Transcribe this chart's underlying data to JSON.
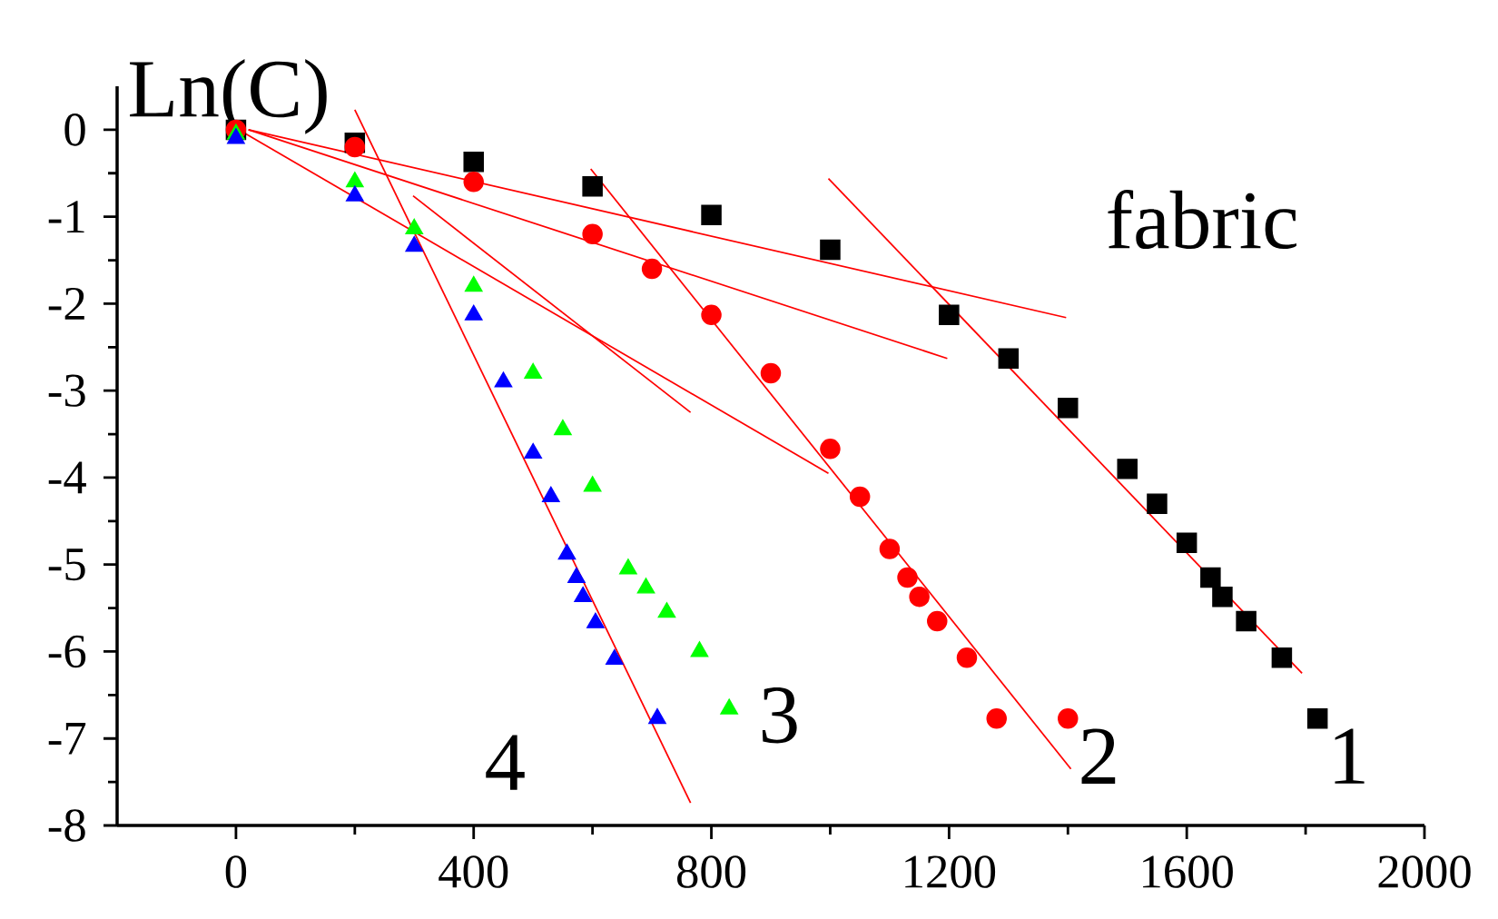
{
  "chart_data": {
    "type": "scatter",
    "ylabel": "Ln(C)",
    "annotations": [
      "fabric"
    ],
    "xlim": [
      -200,
      2000
    ],
    "ylim": [
      -8,
      0.5
    ],
    "xticks": [
      0,
      400,
      800,
      1200,
      1600,
      2000
    ],
    "yticks": [
      -8,
      -7,
      -6,
      -5,
      -4,
      -3,
      -2,
      -1,
      0
    ],
    "series": [
      {
        "name": "1",
        "color": "#000000",
        "marker": "square",
        "x": [
          0,
          200,
          400,
          600,
          800,
          1000,
          1200,
          1300,
          1400,
          1500,
          1550,
          1600,
          1640,
          1660,
          1700,
          1760,
          1820
        ],
        "values": [
          0,
          -0.15,
          -0.37,
          -0.65,
          -0.98,
          -1.38,
          -2.13,
          -2.63,
          -3.2,
          -3.9,
          -4.3,
          -4.75,
          -5.15,
          -5.37,
          -5.65,
          -6.07,
          -6.77
        ]
      },
      {
        "name": "2",
        "color": "#ff0000",
        "marker": "circle",
        "x": [
          0,
          200,
          400,
          600,
          700,
          800,
          900,
          1000,
          1050,
          1100,
          1130,
          1150,
          1180,
          1230,
          1280,
          1400
        ],
        "values": [
          0,
          -0.2,
          -0.6,
          -1.2,
          -1.6,
          -2.13,
          -2.8,
          -3.67,
          -4.22,
          -4.82,
          -5.15,
          -5.37,
          -5.65,
          -6.07,
          -6.77,
          -6.77
        ]
      },
      {
        "name": "3",
        "color": "#00ff00",
        "marker": "triangle",
        "x": [
          0,
          200,
          300,
          400,
          500,
          550,
          600,
          660,
          690,
          725,
          780,
          830
        ],
        "values": [
          -0.05,
          -0.6,
          -1.14,
          -1.8,
          -2.8,
          -3.45,
          -4.1,
          -5.05,
          -5.27,
          -5.55,
          -6.0,
          -6.66
        ]
      },
      {
        "name": "4",
        "color": "#0000ff",
        "marker": "triangle",
        "x": [
          0,
          200,
          300,
          400,
          450,
          500,
          530,
          557,
          573,
          584,
          605,
          637,
          709
        ],
        "values": [
          -0.1,
          -0.76,
          -1.34,
          -2.13,
          -2.9,
          -3.72,
          -4.22,
          -4.88,
          -5.15,
          -5.37,
          -5.67,
          -6.09,
          -6.77
        ]
      },
      {
        "type": "line",
        "color": "#ff0000",
        "x": [
          200,
          765
        ],
        "values": [
          0.23,
          -7.74
        ]
      },
      {
        "type": "line",
        "color": "#ff0000",
        "x": [
          298,
          765
        ],
        "values": [
          -0.76,
          -3.25
        ]
      },
      {
        "type": "line",
        "color": "#ff0000",
        "x": [
          5,
          997
        ],
        "values": [
          0,
          -3.95
        ]
      },
      {
        "type": "line",
        "color": "#ff0000",
        "x": [
          597,
          1405
        ],
        "values": [
          -0.45,
          -7.35
        ]
      },
      {
        "type": "line",
        "color": "#ff0000",
        "x": [
          21,
          1197
        ],
        "values": [
          0,
          -2.63
        ]
      },
      {
        "type": "line",
        "color": "#ff0000",
        "x": [
          21,
          1397
        ],
        "values": [
          0,
          -2.16
        ]
      },
      {
        "type": "line",
        "color": "#ff0000",
        "x": [
          997,
          1794
        ],
        "values": [
          -0.56,
          -6.25
        ]
      }
    ]
  }
}
